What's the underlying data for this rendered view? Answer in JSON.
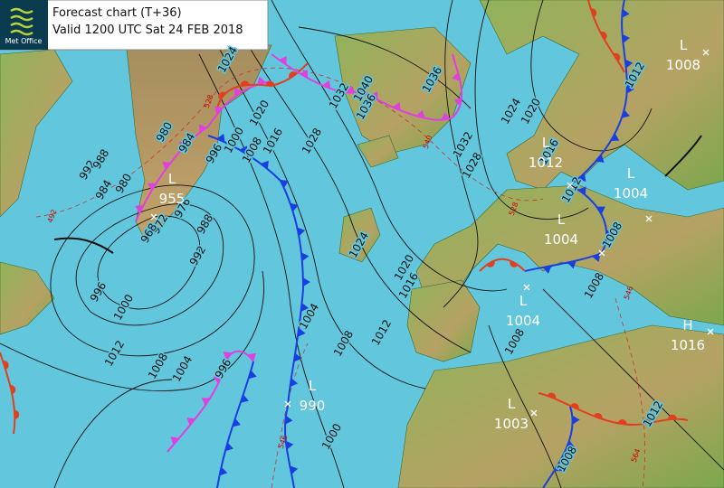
{
  "header": {
    "logo": "Met Office",
    "title": "Forecast chart (T+36)",
    "valid": "Valid 1200 UTC Sat 24 FEB 2018"
  },
  "centres": [
    {
      "type": "L",
      "value": 1008
    },
    {
      "type": "L",
      "value": 1012
    },
    {
      "type": "L",
      "value": 955
    },
    {
      "type": "L",
      "value": 1004
    },
    {
      "type": "L",
      "value": 1004
    },
    {
      "type": "L",
      "value": 1004
    },
    {
      "type": "H",
      "value": 1016
    },
    {
      "type": "L",
      "value": 990
    },
    {
      "type": "L",
      "value": 1003
    }
  ],
  "isobar_labels": [
    1024,
    1032,
    1040,
    1036,
    1036,
    1028,
    1020,
    1016,
    1008,
    1000,
    996,
    980,
    984,
    992,
    988,
    984,
    980,
    976,
    972,
    968,
    988,
    992,
    996,
    1000,
    1012,
    1008,
    1004,
    996,
    1004,
    1008,
    1012,
    1000,
    1024,
    1020,
    1016,
    1028,
    1032,
    1024,
    1020,
    1016,
    1012,
    1012,
    1008,
    1008,
    1008,
    1012,
    1008
  ],
  "thickness_labels": [
    528,
    540,
    528,
    546,
    546,
    564,
    492
  ]
}
